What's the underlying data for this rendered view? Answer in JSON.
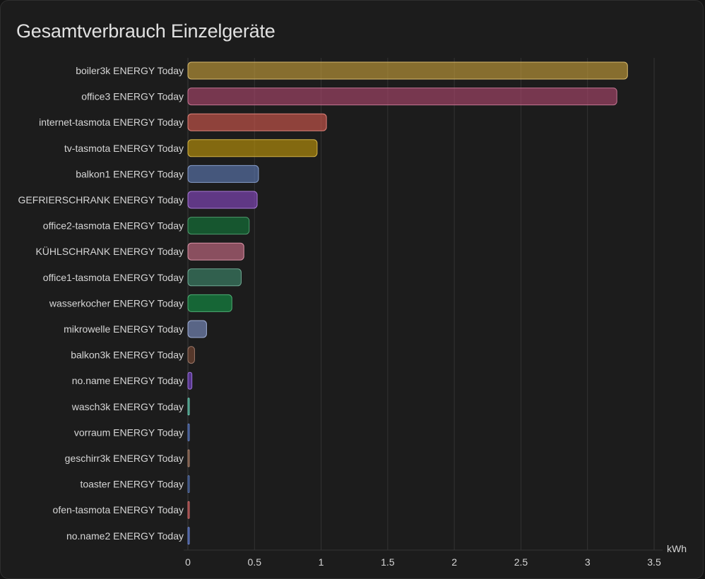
{
  "card": {
    "title": "Gesamtverbrauch Einzelgeräte"
  },
  "chart_data": {
    "type": "bar",
    "orientation": "horizontal",
    "title": "Gesamtverbrauch Einzelgeräte",
    "xlabel": "kWh",
    "ylabel": "",
    "xlim": [
      0,
      3.5
    ],
    "xticks": [
      0,
      0.5,
      1,
      1.5,
      2,
      2.5,
      3,
      3.5
    ],
    "xtick_labels": [
      "0",
      "0.5",
      "1",
      "1.5",
      "2",
      "2.5",
      "3",
      "3.5"
    ],
    "grid": true,
    "categories": [
      "boiler3k ENERGY Today",
      "office3 ENERGY Today",
      "internet-tasmota ENERGY Today",
      "tv-tasmota ENERGY Today",
      "balkon1 ENERGY Today",
      "GEFRIERSCHRANK ENERGY Today",
      "office2-tasmota ENERGY Today",
      "KÜHLSCHRANK ENERGY Today",
      "office1-tasmota ENERGY Today",
      "wasserkocher ENERGY Today",
      "mikrowelle ENERGY Today",
      "balkon3k ENERGY Today",
      "no.name ENERGY Today",
      "wasch3k ENERGY Today",
      "vorraum ENERGY Today",
      "geschirr3k ENERGY Today",
      "toaster ENERGY Today",
      "ofen-tasmota ENERGY Today",
      "no.name2 ENERGY Today"
    ],
    "values": [
      3.3,
      3.22,
      1.04,
      0.97,
      0.53,
      0.52,
      0.46,
      0.42,
      0.4,
      0.33,
      0.14,
      0.05,
      0.03,
      0.01,
      0.005,
      0.005,
      0.005,
      0.005,
      0.005
    ],
    "colors": [
      "#c9a13c",
      "#b0486f",
      "#d65a4f",
      "#c49a0a",
      "#5f7cb8",
      "#8a4bc7",
      "#137a3c",
      "#cf6f89",
      "#3f8a6d",
      "#139447",
      "#7f93c8",
      "#7a4a35",
      "#7b45d0",
      "#3fb89a",
      "#3355aa",
      "#8a5a40",
      "#2a4a90",
      "#c04040",
      "#4060c0"
    ]
  }
}
